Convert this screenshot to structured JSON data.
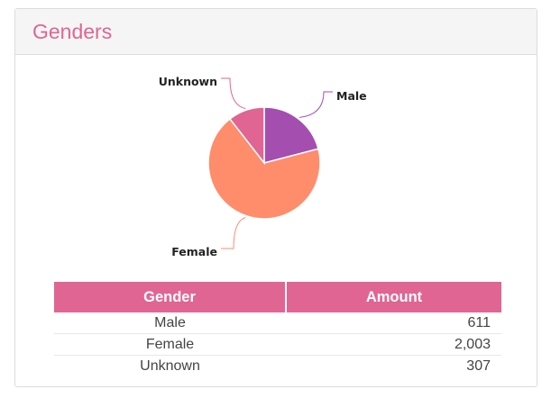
{
  "panel": {
    "title": "Genders"
  },
  "colors": {
    "accent": "#e06592",
    "male": "#a44eb0",
    "female": "#ff8c6b",
    "unknown": "#e06592"
  },
  "chart_data": {
    "type": "pie",
    "categories": [
      "Male",
      "Female",
      "Unknown"
    ],
    "values": [
      611,
      2003,
      307
    ],
    "colors": [
      "#a44eb0",
      "#ff8c6b",
      "#e06592"
    ],
    "start": "top",
    "direction": "clockwise"
  },
  "table": {
    "headers": [
      "Gender",
      "Amount"
    ],
    "rows": [
      {
        "gender": "Male",
        "amount": "611"
      },
      {
        "gender": "Female",
        "amount": "2,003"
      },
      {
        "gender": "Unknown",
        "amount": "307"
      }
    ]
  }
}
